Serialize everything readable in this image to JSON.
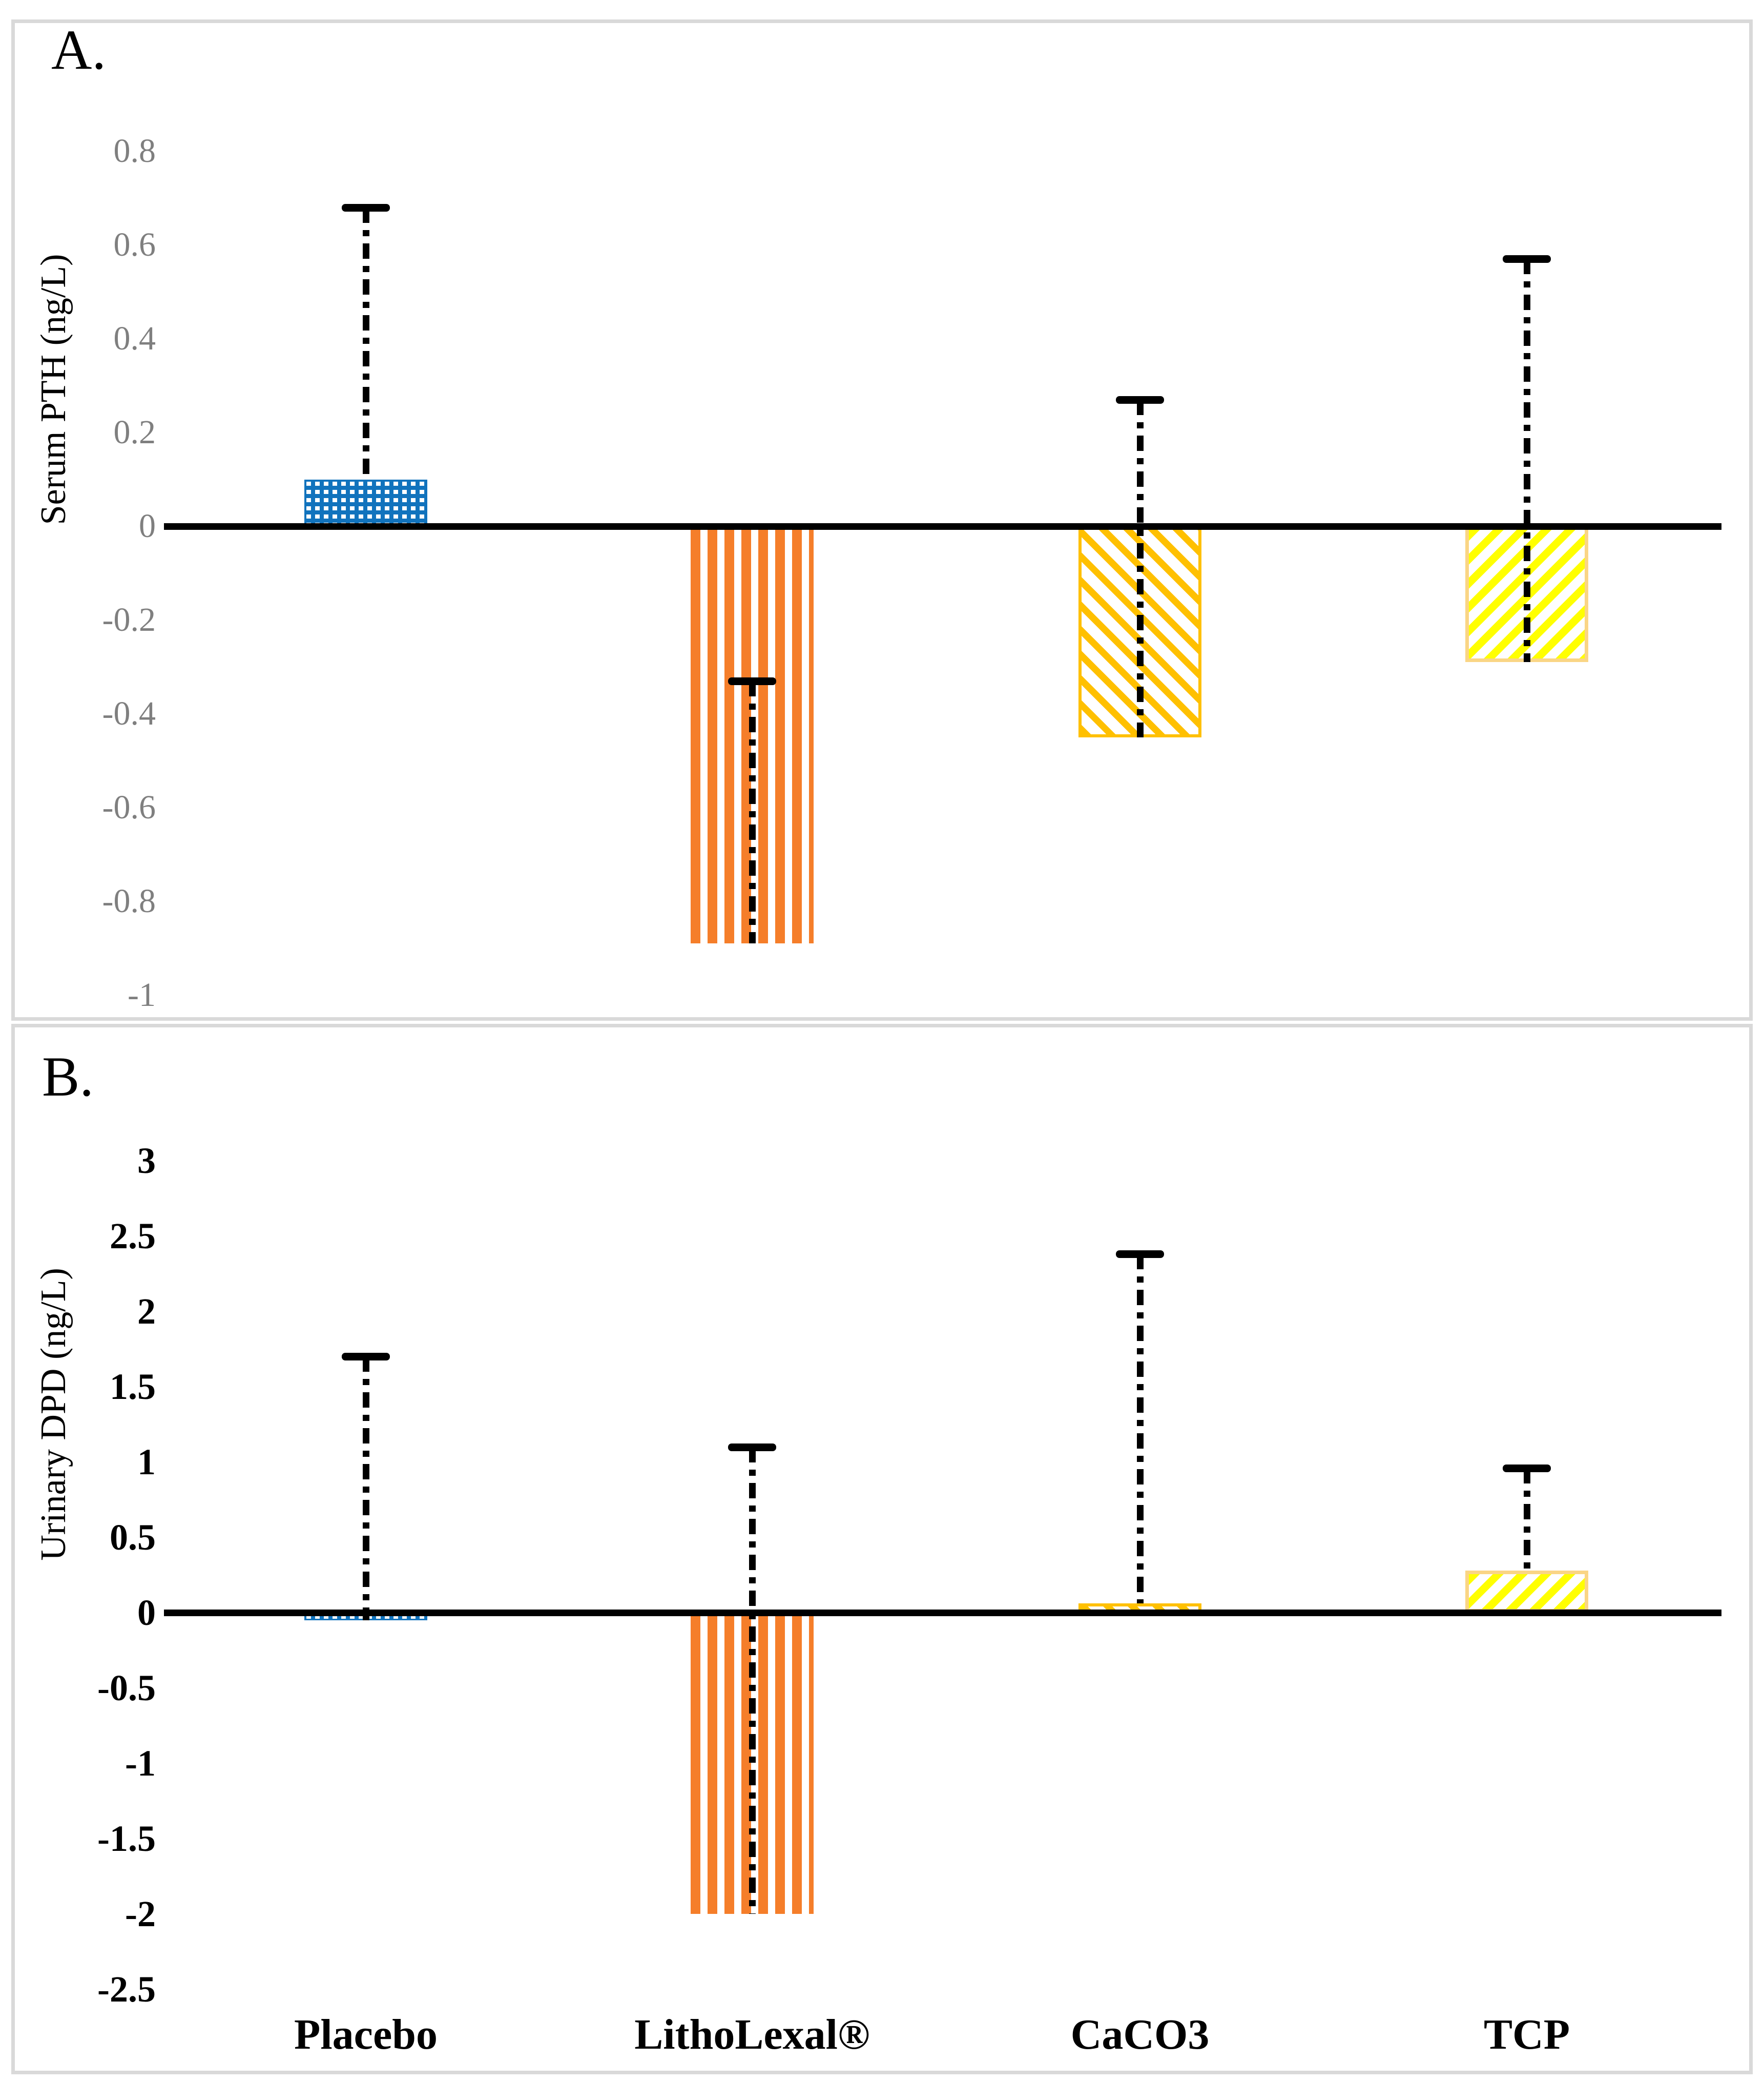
{
  "colors": {
    "placebo_blue": "#1173BD",
    "litholexal_orange": "#F57E2A",
    "caco3_gold": "#FFC000",
    "tcp_yellow": "#FFFF00",
    "tcp_border_tan": "#FAD585",
    "frame_gray": "#D9D9D9",
    "axis_black": "#000000",
    "panelA_tick_gray": "#7F7F7F"
  },
  "categories": [
    "Placebo",
    "LithoLexal®",
    "CaCO3",
    "TCP"
  ],
  "chart_data": [
    {
      "type": "bar",
      "panel_label": "A.",
      "ylabel": "Serum PTH (ng/L)",
      "categories": [
        "Placebo",
        "LithoLexal®",
        "CaCO3",
        "TCP"
      ],
      "values": [
        0.1,
        -0.89,
        -0.45,
        -0.29
      ],
      "whisker_ends": [
        0.68,
        -0.33,
        0.27,
        0.57
      ],
      "error_bar_style": "black dash-dot line from bar tip to whisker end, horizontal cap at outer end",
      "ytick_labels": [
        "0.8",
        "0.6",
        "0.4",
        "0.2",
        "0",
        "-0.2",
        "-0.4",
        "-0.6",
        "-0.8",
        "-1"
      ],
      "ytick_values": [
        0.8,
        0.6,
        0.4,
        0.2,
        0,
        -0.2,
        -0.4,
        -0.6,
        -0.8,
        -1
      ],
      "ylim": [
        -1.05,
        0.9
      ],
      "grid": false,
      "legend": false,
      "bar_patterns": [
        "white dotted grid on blue",
        "vertical white stripes on orange",
        "downward diagonal gold stripes with gold border",
        "upward diagonal yellow stripes with tan border"
      ]
    },
    {
      "type": "bar",
      "panel_label": "B.",
      "ylabel": "Urinary DPD (ng/L)",
      "categories": [
        "Placebo",
        "LithoLexal®",
        "CaCO3",
        "TCP"
      ],
      "values": [
        -0.05,
        -2.0,
        0.06,
        0.28
      ],
      "whisker_ends": [
        1.7,
        1.1,
        2.38,
        0.96
      ],
      "error_bar_style": "black dash-dot line from bar tip to whisker end, horizontal cap at outer end",
      "ytick_labels": [
        "3",
        "2.5",
        "2",
        "1.5",
        "1",
        "0.5",
        "0",
        "-0.5",
        "-1",
        "-1.5",
        "-2",
        "-2.5"
      ],
      "ytick_values": [
        3,
        2.5,
        2,
        1.5,
        1,
        0.5,
        0,
        -0.5,
        -1,
        -1.5,
        -2,
        -2.5
      ],
      "ylim": [
        -2.6,
        3.1
      ],
      "grid": false,
      "legend": false,
      "bar_patterns": [
        "white dotted grid on blue",
        "vertical white stripes on orange",
        "downward diagonal gold stripes with gold border",
        "upward diagonal yellow stripes with tan border"
      ]
    }
  ]
}
